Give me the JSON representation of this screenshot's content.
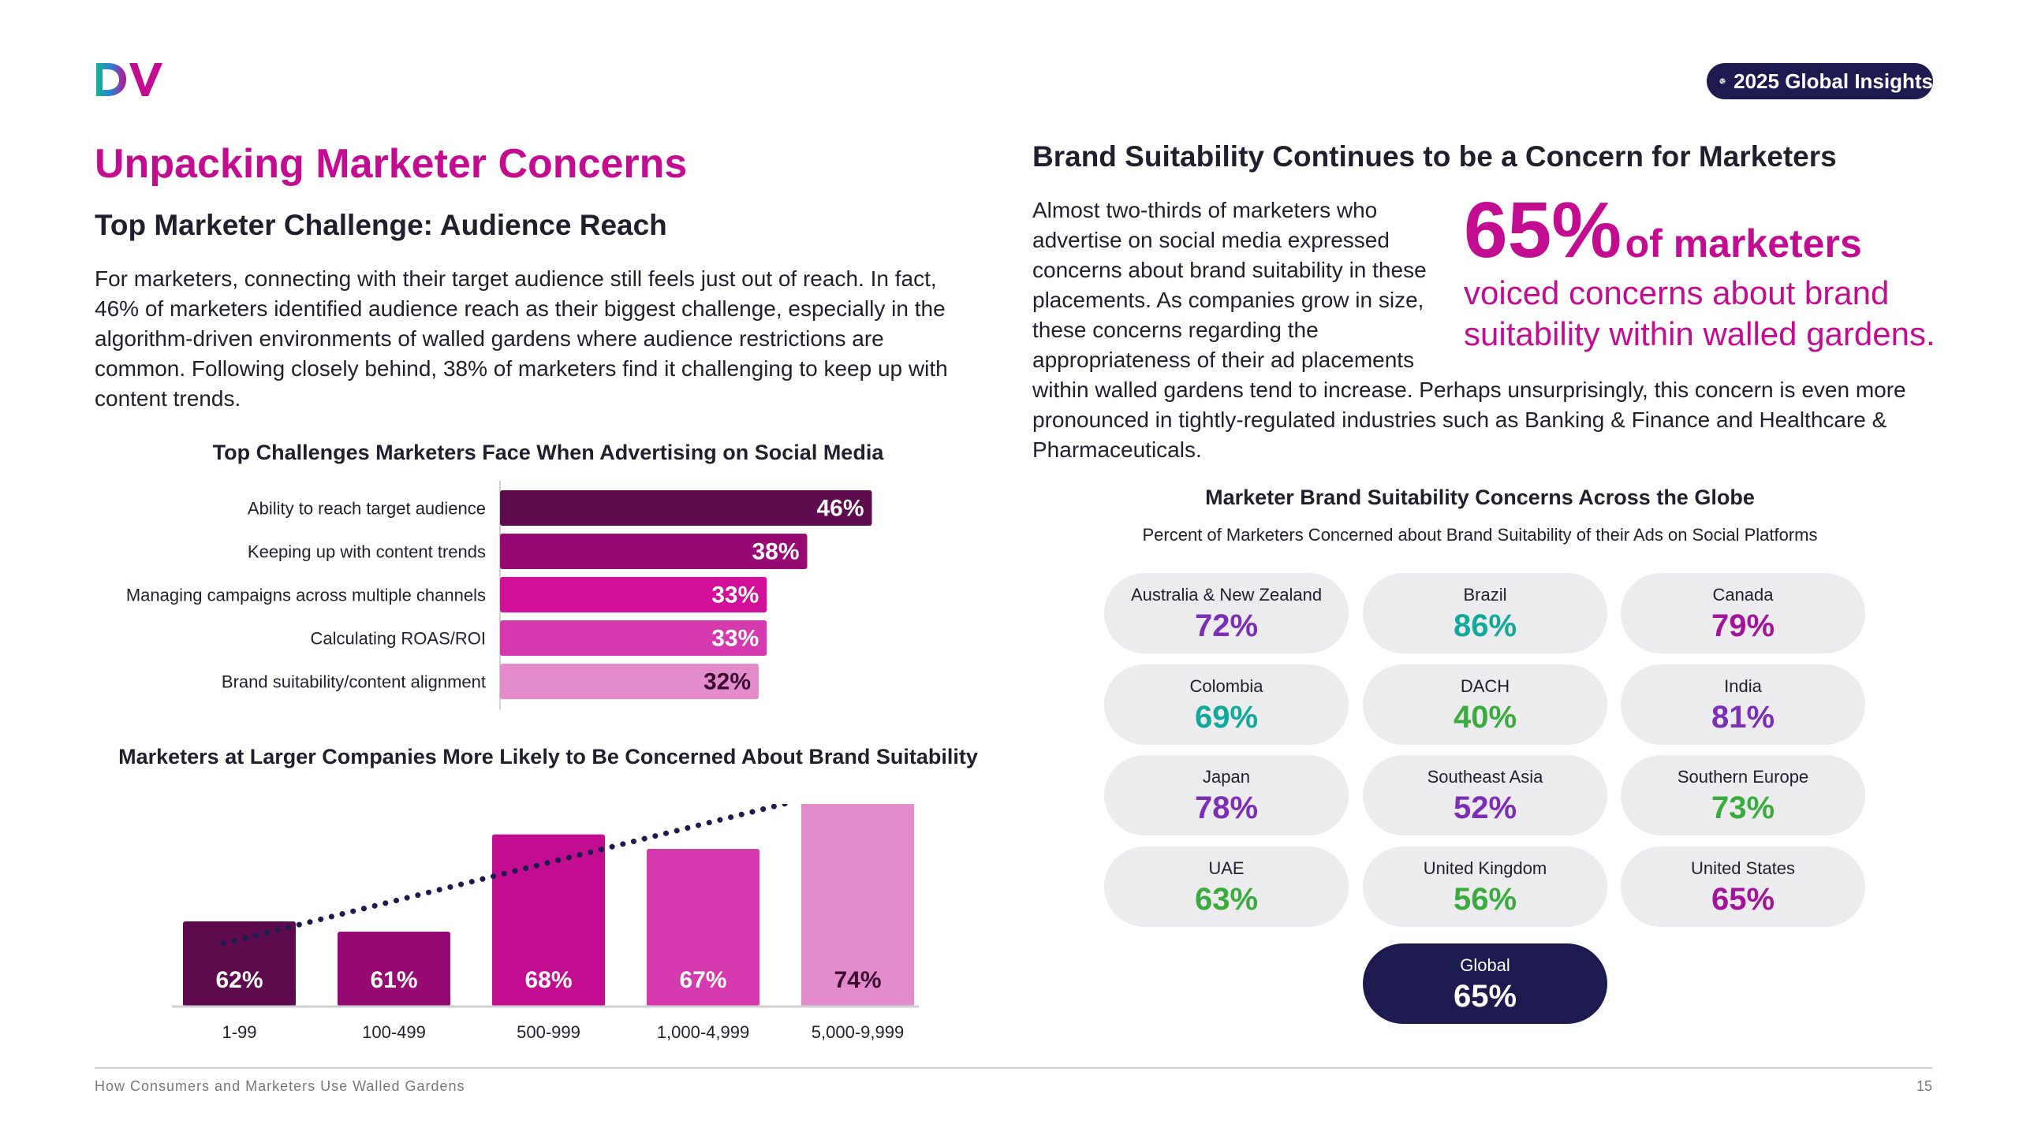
{
  "header": {
    "logo_text": "DV",
    "badge_label": "2025 Global Insights"
  },
  "left": {
    "title": "Unpacking Marketer Concerns",
    "subtitle": "Top Marketer Challenge: Audience Reach",
    "paragraph": "For marketers, connecting with their target audience still feels just out of reach. In fact, 46% of marketers identified audience reach as their biggest challenge, especially in the algorithm-driven environments of walled gardens where audience restrictions are common. Following closely behind, 38% of marketers find it challenging to keep up with content trends."
  },
  "right": {
    "title": "Brand Suitability Continues to be a Concern for Marketers",
    "paragraph": "Almost two-thirds of marketers who advertise on social media expressed concerns about brand suitability in these placements. As companies grow in size, these concerns regarding the appropriateness of their ad placements within walled gardens tend to increase. Perhaps unsurprisingly, this concern is even more pronounced in tightly-regulated industries such as Banking & Finance and Healthcare & Pharmaceuticals.",
    "callout": {
      "big": "65%",
      "big_tail": "of marketers",
      "line2": "voiced concerns about brand suitability within walled gardens."
    }
  },
  "globe": {
    "title": "Marketer Brand Suitability Concerns Across the Globe",
    "subtitle": "Percent of Marketers Concerned about Brand Suitability of their Ads on Social Platforms",
    "regions": [
      {
        "name": "Australia & New Zealand",
        "value": "72%",
        "color": "#7b2fb5"
      },
      {
        "name": "Brazil",
        "value": "86%",
        "color": "#12a89a"
      },
      {
        "name": "Canada",
        "value": "79%",
        "color": "#a2149a"
      },
      {
        "name": "Colombia",
        "value": "69%",
        "color": "#12a89a"
      },
      {
        "name": "DACH",
        "value": "40%",
        "color": "#3bab3f"
      },
      {
        "name": "India",
        "value": "81%",
        "color": "#7b2fb5"
      },
      {
        "name": "Japan",
        "value": "78%",
        "color": "#7b2fb5"
      },
      {
        "name": "Southeast Asia",
        "value": "52%",
        "color": "#7b2fb5"
      },
      {
        "name": "Southern Europe",
        "value": "73%",
        "color": "#3bab3f"
      },
      {
        "name": "UAE",
        "value": "63%",
        "color": "#3bab3f"
      },
      {
        "name": "United Kingdom",
        "value": "56%",
        "color": "#3bab3f"
      },
      {
        "name": "United States",
        "value": "65%",
        "color": "#a2149a"
      }
    ],
    "global": {
      "name": "Global",
      "value": "65%"
    }
  },
  "chart_data": [
    {
      "type": "bar",
      "orientation": "horizontal",
      "title": "Top Challenges Marketers Face When Advertising on Social Media",
      "categories": [
        "Ability to reach target audience",
        "Keeping up with content trends",
        "Managing campaigns across multiple channels",
        "Calculating ROAS/ROI",
        "Brand suitability/content alignment"
      ],
      "values": [
        46,
        38,
        33,
        33,
        32
      ],
      "labels": [
        "46%",
        "38%",
        "33%",
        "33%",
        "32%"
      ],
      "colors": [
        "#5e0a4f",
        "#970a74",
        "#d10f98",
        "#d439ad",
        "#e48ccb"
      ],
      "label_colors": [
        "#ffffff",
        "#ffffff",
        "#ffffff",
        "#ffffff",
        "#3a0a30"
      ]
    },
    {
      "type": "bar",
      "title": "Marketers at Larger Companies More Likely to Be Concerned About Brand Suitability",
      "categories": [
        "1-99",
        "100-499",
        "500-999",
        "1,000-4,999",
        "5,000-9,999"
      ],
      "values": [
        62,
        61,
        68,
        67,
        74
      ],
      "labels": [
        "62%",
        "61%",
        "68%",
        "67%",
        "74%"
      ],
      "colors": [
        "#5e0a4f",
        "#970a74",
        "#c20d91",
        "#d439ad",
        "#e48ccb"
      ],
      "label_colors": [
        "#ffffff",
        "#ffffff",
        "#ffffff",
        "#ffffff",
        "#3a0a30"
      ],
      "trend_line": "dotted"
    }
  ],
  "footer": {
    "text": "How Consumers and Marketers Use Walled Gardens",
    "page": "15"
  }
}
